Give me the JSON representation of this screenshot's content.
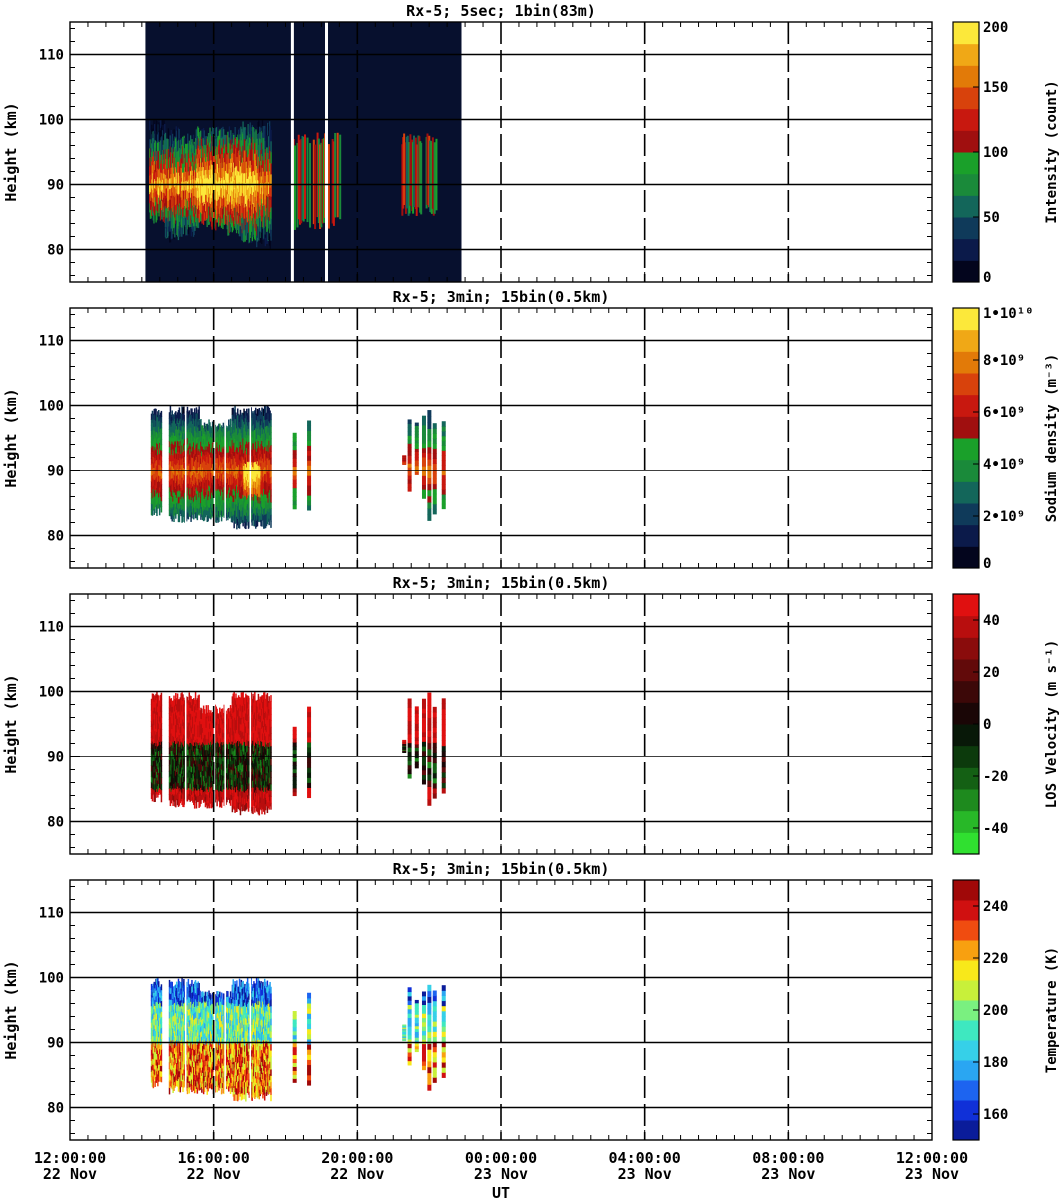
{
  "chart_data": [
    {
      "type": "heatmap",
      "title": "Rx-5;  5sec; 1bin(83m)",
      "ylabel": "Height (km)",
      "ylim": [
        75,
        115
      ],
      "yticks": [
        "80",
        "90",
        "100",
        "110"
      ],
      "xlim": [
        0,
        24
      ],
      "colorbar": {
        "label": "Intensity (count)",
        "ticks": [
          "0",
          "50",
          "100",
          "150",
          "200"
        ],
        "range": [
          0,
          200
        ],
        "colors": [
          "#03051d",
          "#0b1a4a",
          "#0f3a5a",
          "#13665a",
          "#1a8a3a",
          "#1aa02a",
          "#a00f0f",
          "#c8180f",
          "#d8420c",
          "#e27a08",
          "#f0a816",
          "#fce83a"
        ]
      },
      "background_rect": {
        "x0": 2.1,
        "x1": 10.9,
        "y0": 75,
        "y1": 115,
        "color": "#07102e"
      },
      "layer": {
        "x0": 2.2,
        "x1": 5.6,
        "heights_bot": [
          85,
          82,
          83,
          84,
          84,
          83,
          82,
          81,
          84
        ],
        "heights_top": [
          99,
          98,
          97,
          98,
          98,
          98,
          99,
          99,
          98
        ]
      },
      "secondary_layers": [
        {
          "x0": 6.2,
          "x1": 7.6,
          "bot": 85,
          "top": 98
        },
        {
          "x0": 9.2,
          "x1": 10.2,
          "bot": 87,
          "top": 98
        }
      ],
      "core": {
        "x0": 2.3,
        "x1": 5.5,
        "bot": 87,
        "top": 93
      },
      "gaps": [
        6.15,
        7.1
      ],
      "grid": true
    },
    {
      "type": "heatmap",
      "title": "Rx-5; 3min; 15bin(0.5km)",
      "ylabel": "Height (km)",
      "ylim": [
        75,
        115
      ],
      "yticks": [
        "80",
        "90",
        "100",
        "110"
      ],
      "xlim": [
        0,
        24
      ],
      "colorbar": {
        "label": "Sodium density (m⁻³)",
        "ticks": [
          "0",
          "2•10⁹",
          "4•10⁹",
          "6•10⁹",
          "8•10⁹",
          "1•10¹⁰"
        ],
        "range": [
          0,
          10
        ],
        "colors": [
          "#03051d",
          "#0b1a4a",
          "#0f3a5a",
          "#13665a",
          "#1a8a3a",
          "#1aa02a",
          "#a00f0f",
          "#c8180f",
          "#d8420c",
          "#e27a08",
          "#f0a816",
          "#fce83a"
        ]
      },
      "blocks": [
        {
          "x0": 2.25,
          "x1": 2.55,
          "bot": 83,
          "top": 100
        },
        {
          "x0": 2.75,
          "x1": 3.6,
          "bot": 82,
          "top": 100
        },
        {
          "x0": 3.6,
          "x1": 4.5,
          "bot": 82,
          "top": 98
        },
        {
          "x0": 4.5,
          "x1": 5.6,
          "bot": 81,
          "top": 100
        },
        {
          "x0": 6.2,
          "x1": 6.3,
          "bot": 83,
          "top": 96
        },
        {
          "x0": 6.6,
          "x1": 6.7,
          "bot": 83,
          "top": 99
        },
        {
          "x0": 9.25,
          "x1": 9.3,
          "bot": 90,
          "top": 93
        },
        {
          "x0": 9.4,
          "x1": 9.45,
          "bot": 86,
          "top": 99
        },
        {
          "x0": 9.6,
          "x1": 9.65,
          "bot": 88,
          "top": 98
        },
        {
          "x0": 9.8,
          "x1": 9.85,
          "bot": 85,
          "top": 99
        },
        {
          "x0": 9.95,
          "x1": 10.0,
          "bot": 82,
          "top": 100
        },
        {
          "x0": 10.1,
          "x1": 10.15,
          "bot": 83,
          "top": 98
        },
        {
          "x0": 10.35,
          "x1": 10.4,
          "bot": 84,
          "top": 99
        }
      ],
      "grid": true
    },
    {
      "type": "heatmap",
      "title": "Rx-5; 3min; 15bin(0.5km)",
      "ylabel": "LOS Velocity (m s⁻¹)",
      "ylabel_axis": "Height (km)",
      "ylim": [
        75,
        115
      ],
      "yticks": [
        "80",
        "90",
        "100",
        "110"
      ],
      "xlim": [
        0,
        24
      ],
      "colorbar": {
        "label": "LOS Velocity (m s⁻¹)",
        "ticks": [
          "-40",
          "-20",
          "0",
          "20",
          "40"
        ],
        "range": [
          -50,
          50
        ],
        "colors": [
          "#30e030",
          "#28b828",
          "#1e8a1e",
          "#146014",
          "#0c3a0c",
          "#081808",
          "#1a0606",
          "#3c0808",
          "#620a0a",
          "#8a0c0c",
          "#b80e0e",
          "#e01010"
        ]
      },
      "grid": true
    },
    {
      "type": "heatmap",
      "title": "Rx-5; 3min; 15bin(0.5km)",
      "ylabel": "Height (km)",
      "ylim": [
        75,
        115
      ],
      "yticks": [
        "80",
        "90",
        "100",
        "110"
      ],
      "xlim": [
        0,
        24
      ],
      "xticks": [
        {
          "time": "12:00:00",
          "date": "22 Nov"
        },
        {
          "time": "16:00:00",
          "date": "22 Nov"
        },
        {
          "time": "20:00:00",
          "date": "22 Nov"
        },
        {
          "time": "00:00:00",
          "date": "23 Nov"
        },
        {
          "time": "04:00:00",
          "date": "23 Nov"
        },
        {
          "time": "08:00:00",
          "date": "23 Nov"
        },
        {
          "time": "12:00:00",
          "date": "23 Nov"
        }
      ],
      "xlabel": "UT",
      "colorbar": {
        "label": "Temperature (K)",
        "ticks": [
          "160",
          "180",
          "200",
          "220",
          "240"
        ],
        "range": [
          150,
          250
        ],
        "colors": [
          "#0a1c9a",
          "#1030d8",
          "#1d64f0",
          "#2aa6f2",
          "#36d0e8",
          "#3ee8c0",
          "#7af080",
          "#c8f03a",
          "#f8e81a",
          "#f8a010",
          "#f04c10",
          "#d01010",
          "#a00808"
        ]
      },
      "grid": true
    }
  ]
}
